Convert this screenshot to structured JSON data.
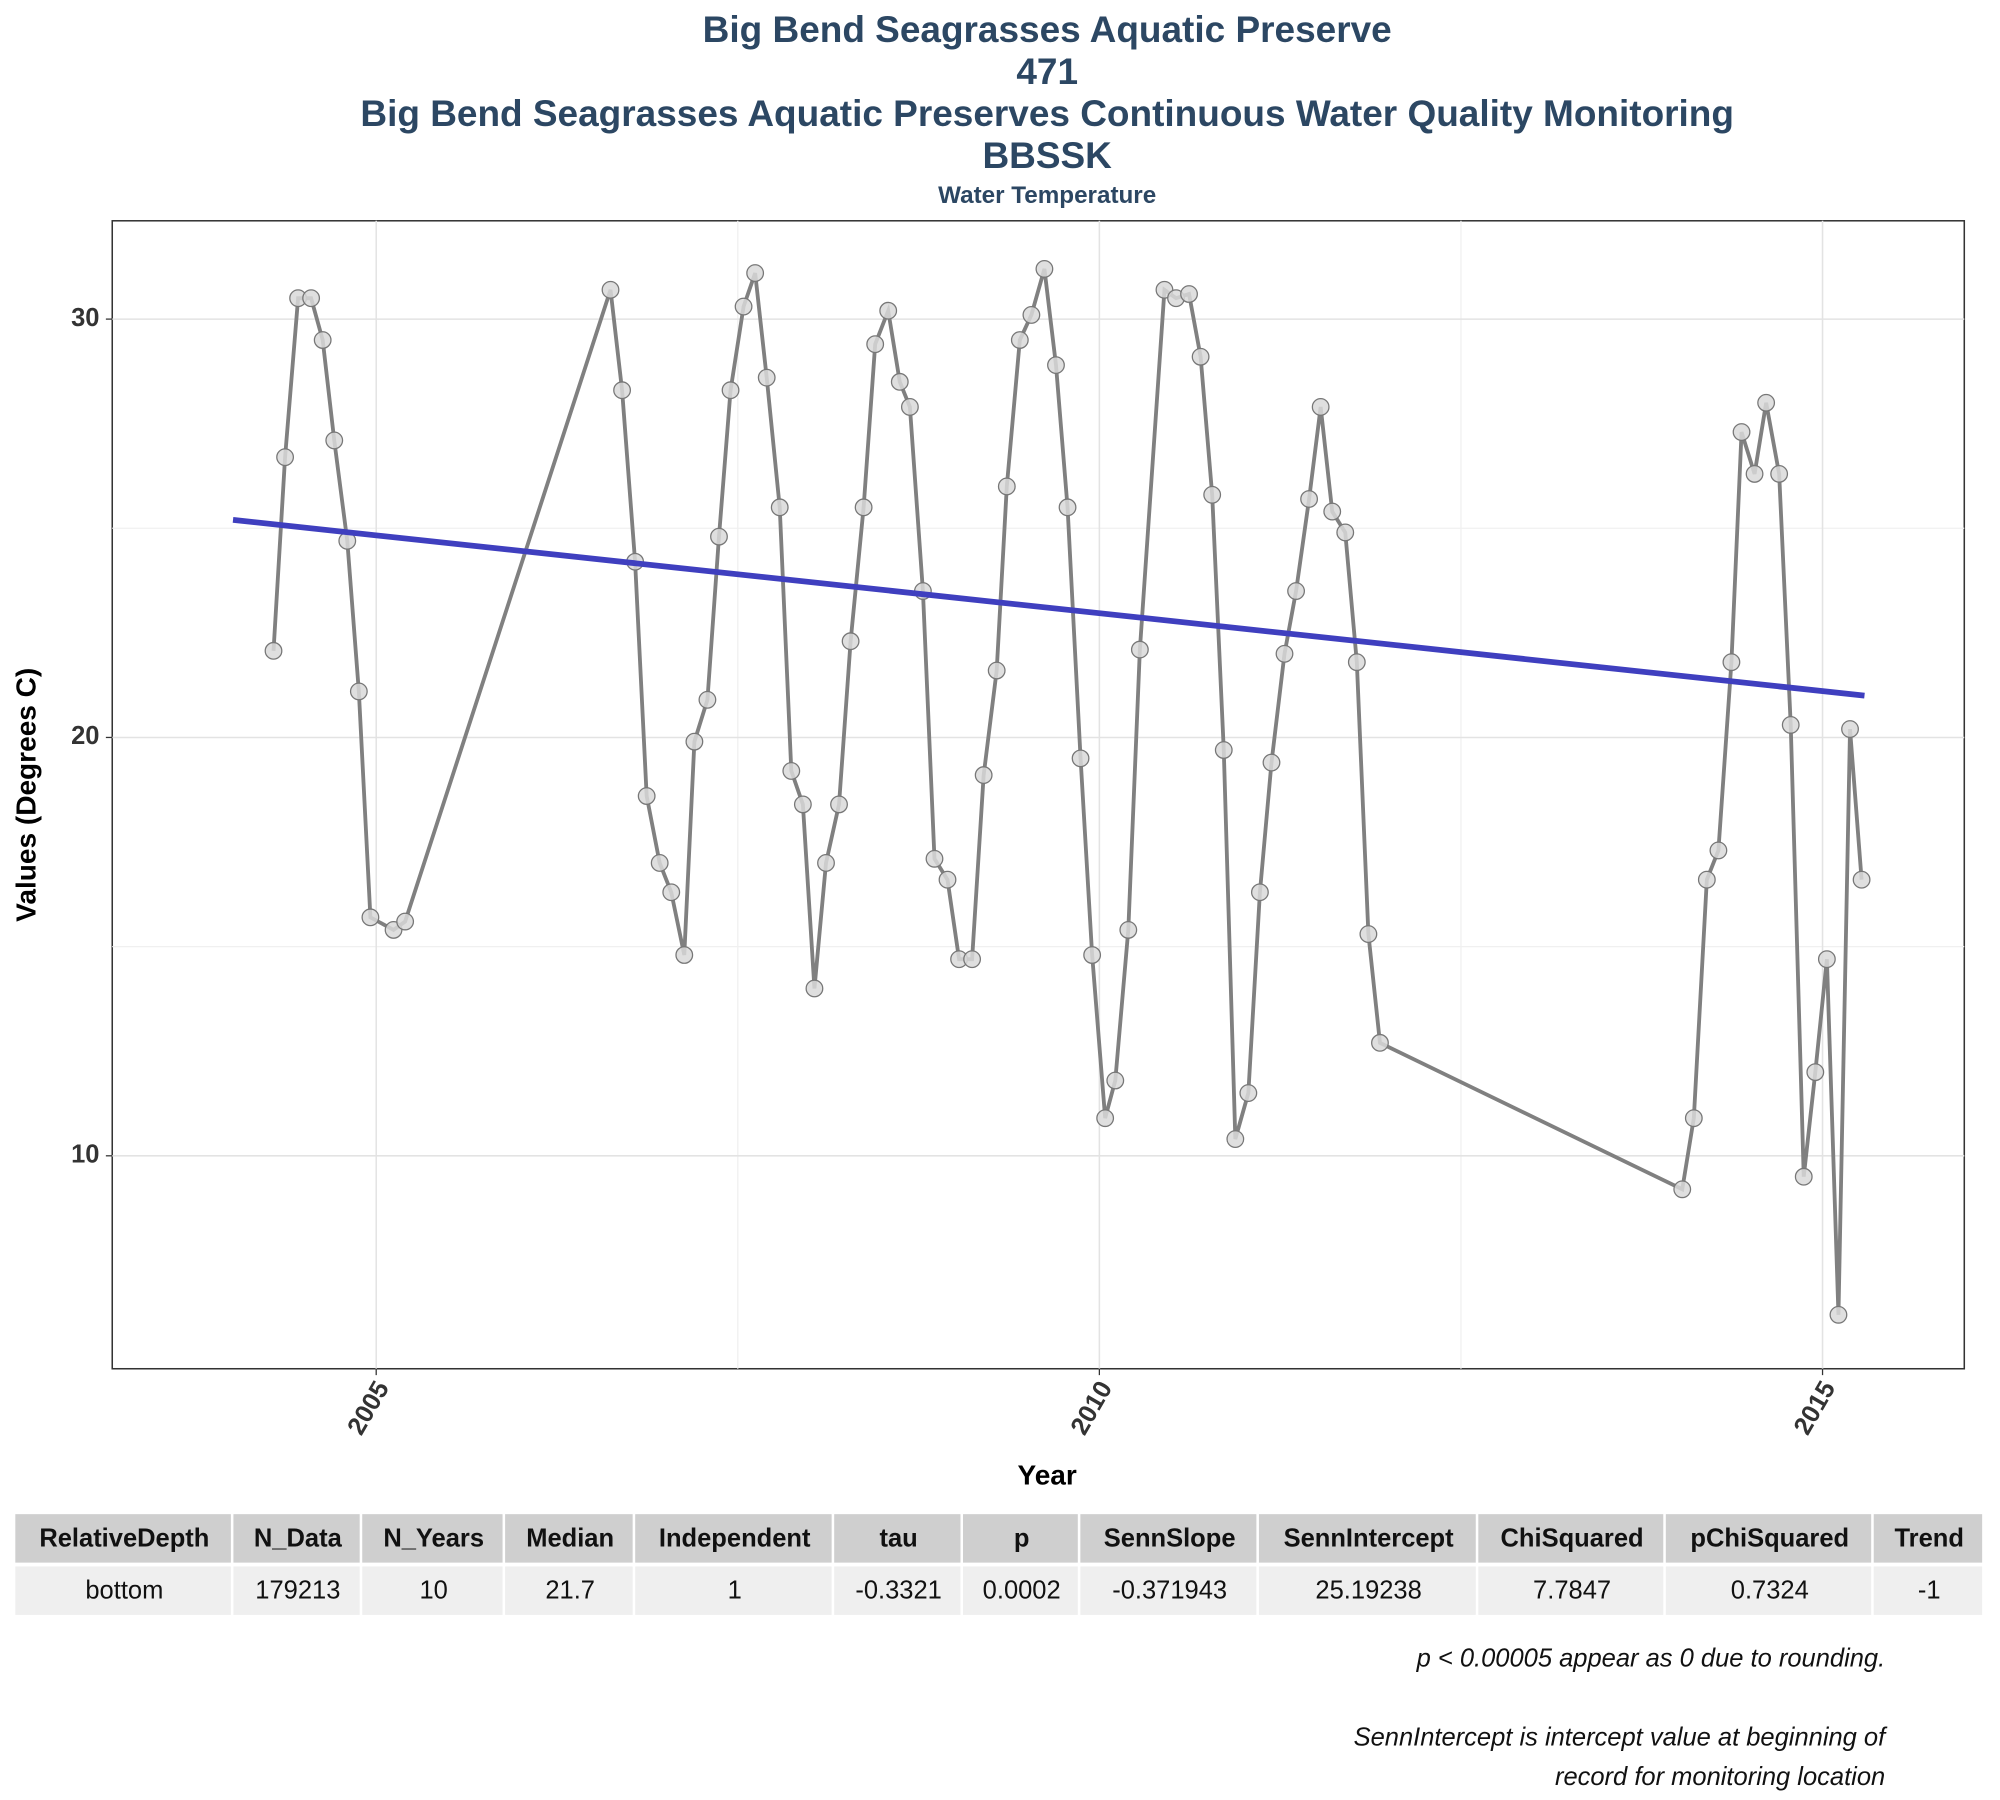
{
  "chart_data": {
    "type": "line",
    "title": [
      "Big Bend Seagrasses Aquatic Preserve",
      "471",
      "Big Bend Seagrasses Aquatic Preserves Continuous Water Quality Monitoring",
      "BBSSK"
    ],
    "subtitle": "Water Temperature",
    "x_label": "Year",
    "y_label": "Values (Degrees C)",
    "xlim": [
      2003.175,
      2015.98
    ],
    "xticks": [
      2005,
      2010,
      2015
    ],
    "x_minor_grid": [
      2007.5,
      2012.5
    ],
    "ylim": [
      4.91,
      32.35
    ],
    "yticks": [
      10,
      20,
      30
    ],
    "y_minor_grid": [
      15,
      25
    ],
    "grid": true,
    "series": [
      {
        "color": "#808080",
        "x": [
          2004.29,
          2004.37,
          2004.46,
          2004.55,
          2004.63,
          2004.71,
          2004.8,
          2004.88,
          2004.96,
          2005.12,
          2005.2,
          2006.62,
          2006.7,
          2006.79,
          2006.87,
          2006.96,
          2007.04,
          2007.13,
          2007.2,
          2007.29,
          2007.37,
          2007.45,
          2007.54,
          2007.62,
          2007.7,
          2007.79,
          2007.87,
          2007.95,
          2008.03,
          2008.11,
          2008.2,
          2008.28,
          2008.37,
          2008.45,
          2008.54,
          2008.62,
          2008.69,
          2008.78,
          2008.86,
          2008.95,
          2009.03,
          2009.12,
          2009.2,
          2009.29,
          2009.36,
          2009.45,
          2009.53,
          2009.62,
          2009.7,
          2009.78,
          2009.87,
          2009.95,
          2010.04,
          2010.11,
          2010.2,
          2010.28,
          2010.45,
          2010.53,
          2010.62,
          2010.7,
          2010.78,
          2010.86,
          2010.94,
          2011.03,
          2011.11,
          2011.19,
          2011.28,
          2011.36,
          2011.45,
          2011.53,
          2011.61,
          2011.7,
          2011.78,
          2011.86,
          2011.94,
          2014.03,
          2014.11,
          2014.2,
          2014.28,
          2014.37,
          2014.44,
          2014.53,
          2014.61,
          2014.7,
          2014.78,
          2014.87,
          2014.95,
          2015.03,
          2015.11,
          2015.19,
          2015.27
        ],
        "values": [
          22.07,
          26.7,
          30.5,
          30.5,
          29.5,
          27.1,
          24.7,
          21.1,
          15.7,
          15.4,
          15.6,
          30.7,
          28.3,
          24.2,
          18.6,
          17.0,
          16.3,
          14.8,
          19.9,
          20.9,
          24.8,
          28.3,
          30.3,
          31.1,
          28.6,
          25.5,
          19.2,
          18.4,
          14.0,
          17.0,
          18.4,
          22.3,
          25.5,
          29.4,
          30.2,
          28.5,
          27.9,
          23.5,
          17.1,
          16.6,
          14.7,
          14.7,
          19.1,
          21.6,
          26.0,
          29.5,
          30.1,
          31.2,
          28.9,
          25.5,
          19.5,
          14.8,
          10.9,
          11.8,
          15.4,
          22.1,
          30.7,
          30.5,
          30.6,
          29.1,
          25.8,
          19.7,
          10.4,
          11.5,
          16.3,
          19.4,
          22.0,
          23.5,
          25.7,
          27.9,
          25.4,
          24.9,
          21.8,
          15.3,
          12.7,
          9.2,
          10.9,
          16.6,
          17.3,
          21.8,
          27.3,
          26.3,
          28.0,
          26.3,
          20.3,
          9.5,
          12.0,
          14.7,
          6.2,
          20.2,
          16.6
        ]
      }
    ],
    "trend": {
      "color": "#3f3fbf",
      "x": [
        2004.01,
        2015.29
      ],
      "values": [
        25.2,
        21.0
      ]
    }
  },
  "table": {
    "columns": [
      "RelativeDepth",
      "N_Data",
      "N_Years",
      "Median",
      "Independent",
      "tau",
      "p",
      "SennSlope",
      "SennIntercept",
      "ChiSquared",
      "pChiSquared",
      "Trend"
    ],
    "rows": [
      [
        "bottom",
        "179213",
        "10",
        "21.7",
        "1",
        "-0.3321",
        "0.0002",
        "-0.371943",
        "25.19238",
        "7.7847",
        "0.7324",
        "-1"
      ]
    ]
  },
  "notes": [
    "p < 0.00005 appear as 0 due to rounding.",
    "SennIntercept is intercept value at beginning of",
    "record for monitoring location"
  ]
}
